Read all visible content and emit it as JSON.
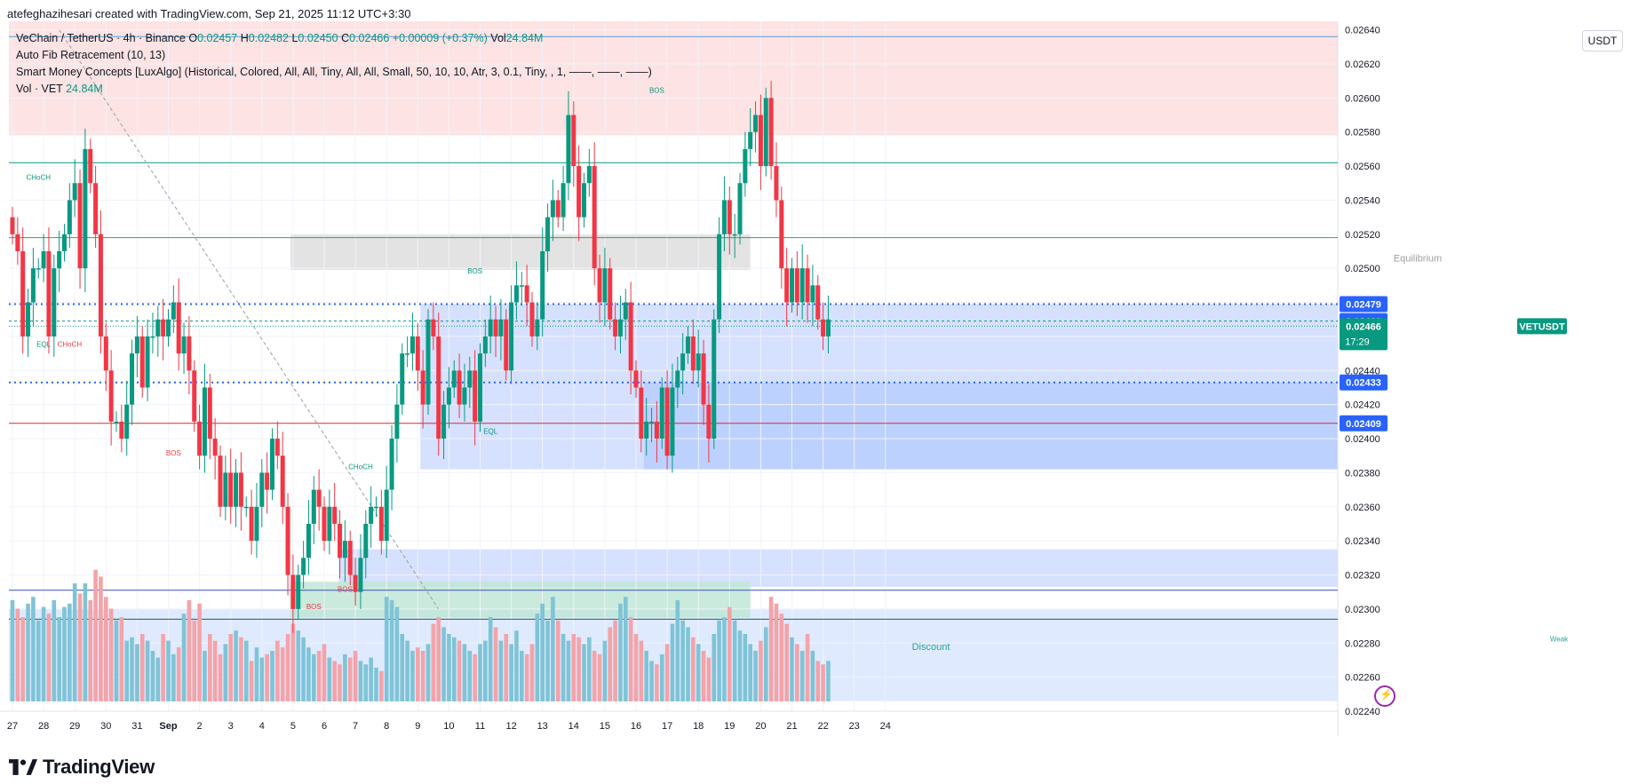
{
  "header": {
    "credit": "atefeghazihesari created with TradingView.com, Sep 21, 2025 11:12 UTC+3:30"
  },
  "legend": {
    "symbol_line": "VeChain / TetherUS · 4h · Binance",
    "o_label": "O",
    "o_value": "0.02457",
    "h_label": "H",
    "h_value": "0.02482",
    "l_label": "L",
    "l_value": "0.02450",
    "c_label": "C",
    "c_value": "0.02466",
    "change": "+0.00009 (+0.37%)",
    "vol_label": "Vol",
    "vol_value": "24.84M",
    "indicator1": "Auto Fib Retracement (10, 13)",
    "indicator2": "Smart Money Concepts [LuxAlgo] (Historical, Colored, All, All, Tiny, All, All, Small, 50, 10, 10, Atr, 3, 0.1, Tiny, , 1, ——, ——, ——)",
    "vol_line_label": "Vol · VET",
    "vol_line_value": "24.84M"
  },
  "currency": "USDT",
  "footer": {
    "brand": "TradingView"
  },
  "colors": {
    "up": "#089981",
    "down": "#f23645",
    "vol_up": "#7fc4d6",
    "vol_down": "#f4a3a8",
    "premium": "#fde3e3",
    "discount": "#dce8ff",
    "equilibrium": "#e0e0e0"
  },
  "chart_data": {
    "type": "candlestick",
    "symbol": "VETUSDT",
    "timeframe": "4h",
    "ylim": [
      0.0224,
      0.02645
    ],
    "y_ticks": [
      "0.02640",
      "0.02620",
      "0.02600",
      "0.02580",
      "0.02560",
      "0.02540",
      "0.02520",
      "0.02500",
      "0.02480",
      "0.02460",
      "0.02440",
      "0.02420",
      "0.02400",
      "0.02380",
      "0.02360",
      "0.02340",
      "0.02320",
      "0.02300",
      "0.02280",
      "0.02260",
      "0.02240"
    ],
    "x_ticks": [
      {
        "label": "27",
        "i": 0
      },
      {
        "label": "28",
        "i": 6
      },
      {
        "label": "29",
        "i": 12
      },
      {
        "label": "30",
        "i": 18
      },
      {
        "label": "31",
        "i": 24
      },
      {
        "label": "Sep",
        "i": 30
      },
      {
        "label": "2",
        "i": 36
      },
      {
        "label": "3",
        "i": 42
      },
      {
        "label": "4",
        "i": 48
      },
      {
        "label": "5",
        "i": 54
      },
      {
        "label": "6",
        "i": 60
      },
      {
        "label": "7",
        "i": 66
      },
      {
        "label": "8",
        "i": 72
      },
      {
        "label": "9",
        "i": 78
      },
      {
        "label": "10",
        "i": 84
      },
      {
        "label": "11",
        "i": 90
      },
      {
        "label": "12",
        "i": 96
      },
      {
        "label": "13",
        "i": 102
      },
      {
        "label": "14",
        "i": 108
      },
      {
        "label": "15",
        "i": 114
      },
      {
        "label": "16",
        "i": 120
      },
      {
        "label": "17",
        "i": 126
      },
      {
        "label": "18",
        "i": 132
      },
      {
        "label": "19",
        "i": 138
      },
      {
        "label": "20",
        "i": 144
      },
      {
        "label": "21",
        "i": 150
      },
      {
        "label": "22",
        "i": 156
      },
      {
        "label": "23",
        "i": 162
      },
      {
        "label": "24",
        "i": 168
      }
    ],
    "candles_close": [
      0.0252,
      0.0251,
      0.0246,
      0.0248,
      0.025,
      0.025,
      0.0251,
      0.0246,
      0.025,
      0.0251,
      0.0252,
      0.0254,
      0.0255,
      0.025,
      0.0257,
      0.0255,
      0.0252,
      0.0246,
      0.0244,
      0.0241,
      0.0241,
      0.024,
      0.0242,
      0.0245,
      0.0246,
      0.0243,
      0.0246,
      0.0246,
      0.0247,
      0.0246,
      0.0247,
      0.0248,
      0.0245,
      0.0246,
      0.0244,
      0.0241,
      0.0239,
      0.0243,
      0.024,
      0.0239,
      0.0236,
      0.0238,
      0.0236,
      0.0238,
      0.0236,
      0.0236,
      0.0234,
      0.0236,
      0.0238,
      0.0237,
      0.024,
      0.0239,
      0.0236,
      0.0232,
      0.023,
      0.0232,
      0.0233,
      0.0235,
      0.0237,
      0.0236,
      0.0234,
      0.0236,
      0.0235,
      0.0233,
      0.0234,
      0.0232,
      0.0231,
      0.0233,
      0.0235,
      0.0236,
      0.0236,
      0.0234,
      0.0237,
      0.024,
      0.0242,
      0.0245,
      0.0245,
      0.0246,
      0.0244,
      0.0242,
      0.0247,
      0.0246,
      0.024,
      0.0242,
      0.0243,
      0.0244,
      0.0242,
      0.0243,
      0.0244,
      0.0241,
      0.0245,
      0.0246,
      0.0247,
      0.0246,
      0.0247,
      0.0244,
      0.0248,
      0.0249,
      0.0249,
      0.0248,
      0.0246,
      0.0247,
      0.0251,
      0.0253,
      0.0254,
      0.0253,
      0.0255,
      0.0259,
      0.0256,
      0.0253,
      0.0255,
      0.0256,
      0.025,
      0.0248,
      0.025,
      0.0247,
      0.0246,
      0.0247,
      0.0248,
      0.0244,
      0.0243,
      0.024,
      0.0241,
      0.0241,
      0.024,
      0.0243,
      0.0239,
      0.0243,
      0.0244,
      0.0245,
      0.0246,
      0.0244,
      0.0245,
      0.0242,
      0.024,
      0.0247,
      0.0252,
      0.0254,
      0.0252,
      0.0252,
      0.0255,
      0.0257,
      0.0258,
      0.0259,
      0.0256,
      0.026,
      0.0256,
      0.0254,
      0.025,
      0.0248,
      0.025,
      0.0248,
      0.025,
      0.0248,
      0.0249,
      0.0247,
      0.0246,
      0.0247
    ],
    "current_price": "0.02466",
    "price_labels": [
      {
        "label": "0.02479",
        "price": 0.02479,
        "color": "#2962ff"
      },
      {
        "label": "0.02469",
        "price": 0.02469,
        "color": "#2962ff"
      },
      {
        "label": "0.02466",
        "price": 0.02466,
        "color": "#089981",
        "symbol": "VETUSDT",
        "countdown": "17:29"
      },
      {
        "label": "0.02433",
        "price": 0.02433,
        "color": "#2962ff"
      },
      {
        "label": "0.02409",
        "price": 0.02409,
        "color": "#2962ff"
      }
    ],
    "zone_labels": {
      "equilibrium": "Equilibrium",
      "discount": "Discount",
      "weak": "Weak"
    },
    "structure_labels": [
      {
        "text": "CHoCH",
        "i": 5,
        "price": 0.02552,
        "color": "#089981"
      },
      {
        "text": "EQL",
        "i": 6,
        "price": 0.02454,
        "color": "#089981"
      },
      {
        "text": "CHoCH",
        "i": 11,
        "price": 0.02454,
        "color": "#f23645"
      },
      {
        "text": "BOS",
        "i": 31,
        "price": 0.0239,
        "color": "#f23645"
      },
      {
        "text": "BOS",
        "i": 58,
        "price": 0.023,
        "color": "#f23645"
      },
      {
        "text": "BOS",
        "i": 64,
        "price": 0.0231,
        "color": "#f23645"
      },
      {
        "text": "CHoCH",
        "i": 67,
        "price": 0.02382,
        "color": "#089981"
      },
      {
        "text": "BOS",
        "i": 89,
        "price": 0.02497,
        "color": "#089981"
      },
      {
        "text": "EQL",
        "i": 92,
        "price": 0.02403,
        "color": "#089981"
      },
      {
        "text": "BOS",
        "i": 124,
        "price": 0.02603,
        "color": "#089981"
      }
    ],
    "volume": [
      60,
      55,
      50,
      58,
      62,
      48,
      56,
      52,
      60,
      50,
      56,
      58,
      70,
      64,
      70,
      60,
      78,
      74,
      62,
      55,
      48,
      50,
      36,
      38,
      34,
      40,
      36,
      30,
      26,
      40,
      36,
      28,
      32,
      52,
      60,
      48,
      58,
      30,
      40,
      36,
      28,
      34,
      40,
      42,
      38,
      36,
      24,
      32,
      26,
      28,
      30,
      36,
      32,
      40,
      46,
      42,
      38,
      32,
      28,
      30,
      34,
      26,
      24,
      22,
      28,
      26,
      30,
      24,
      22,
      26,
      20,
      18,
      62,
      60,
      56,
      40,
      36,
      30,
      32,
      30,
      34,
      46,
      50,
      44,
      40,
      38,
      36,
      34,
      30,
      28,
      34,
      36,
      50,
      44,
      36,
      40,
      34,
      42,
      30,
      28,
      34,
      52,
      58,
      48,
      62,
      48,
      40,
      36,
      40,
      38,
      34,
      38,
      30,
      28,
      36,
      44,
      48,
      58,
      62,
      50,
      40,
      36,
      30,
      24,
      22,
      28,
      34,
      46,
      60,
      48,
      44,
      38,
      34,
      30,
      26,
      40,
      48,
      50,
      56,
      48,
      42,
      40,
      34,
      30,
      36,
      44,
      62,
      58,
      52,
      46,
      38,
      34,
      30,
      40,
      30,
      24,
      22,
      24
    ]
  }
}
